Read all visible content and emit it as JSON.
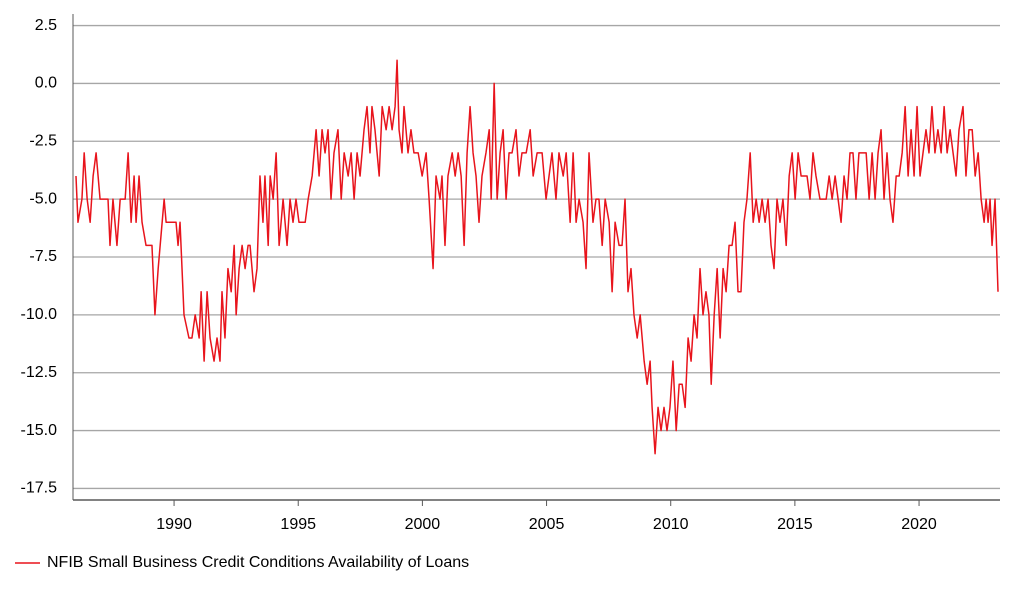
{
  "chart_data": {
    "type": "line",
    "x": [
      1986.05,
      1986.13,
      1986.29,
      1986.38,
      1986.5,
      1986.62,
      1986.74,
      1986.86,
      1987.02,
      1987.34,
      1987.42,
      1987.54,
      1987.7,
      1987.83,
      1988.03,
      1988.15,
      1988.27,
      1988.39,
      1988.47,
      1988.59,
      1988.71,
      1988.87,
      1989.11,
      1989.23,
      1989.36,
      1989.6,
      1989.68,
      1990.08,
      1990.16,
      1990.24,
      1990.4,
      1990.6,
      1990.72,
      1990.85,
      1991.01,
      1991.09,
      1991.21,
      1991.33,
      1991.45,
      1991.61,
      1991.73,
      1991.85,
      1991.93,
      1992.05,
      1992.17,
      1992.3,
      1992.42,
      1992.5,
      1992.62,
      1992.74,
      1992.86,
      1992.98,
      1993.06,
      1993.22,
      1993.34,
      1993.46,
      1993.58,
      1993.66,
      1993.79,
      1993.87,
      1993.99,
      1994.11,
      1994.23,
      1994.39,
      1994.55,
      1994.67,
      1994.79,
      1994.91,
      1995.03,
      1995.28,
      1995.4,
      1995.56,
      1995.72,
      1995.84,
      1995.96,
      1996.08,
      1996.2,
      1996.32,
      1996.44,
      1996.6,
      1996.73,
      1996.85,
      1997.01,
      1997.13,
      1997.25,
      1997.37,
      1997.49,
      1997.65,
      1997.77,
      1997.89,
      1997.97,
      1998.09,
      1998.26,
      1998.38,
      1998.54,
      1998.66,
      1998.78,
      1998.9,
      1998.98,
      1999.06,
      1999.18,
      1999.26,
      1999.42,
      1999.54,
      1999.66,
      1999.83,
      1999.99,
      2000.15,
      2000.27,
      2000.43,
      2000.55,
      2000.71,
      2000.79,
      2000.91,
      2001.03,
      2001.2,
      2001.32,
      2001.44,
      2001.56,
      2001.68,
      2001.8,
      2001.92,
      2002.04,
      2002.16,
      2002.28,
      2002.4,
      2002.56,
      2002.69,
      2002.77,
      2002.89,
      2003.01,
      2003.13,
      2003.25,
      2003.37,
      2003.49,
      2003.61,
      2003.77,
      2003.89,
      2004.01,
      2004.18,
      2004.34,
      2004.46,
      2004.62,
      2004.82,
      2004.98,
      2005.1,
      2005.22,
      2005.38,
      2005.5,
      2005.67,
      2005.79,
      2005.95,
      2006.07,
      2006.19,
      2006.31,
      2006.47,
      2006.59,
      2006.71,
      2006.87,
      2006.99,
      2007.11,
      2007.24,
      2007.36,
      2007.52,
      2007.64,
      2007.76,
      2007.92,
      2008.04,
      2008.16,
      2008.28,
      2008.4,
      2008.52,
      2008.65,
      2008.77,
      2008.93,
      2009.05,
      2009.17,
      2009.25,
      2009.37,
      2009.49,
      2009.61,
      2009.73,
      2009.85,
      2009.97,
      2010.09,
      2010.22,
      2010.34,
      2010.46,
      2010.58,
      2010.7,
      2010.82,
      2010.94,
      2011.06,
      2011.18,
      2011.3,
      2011.42,
      2011.54,
      2011.63,
      2011.75,
      2011.87,
      2011.99,
      2012.11,
      2012.23,
      2012.35,
      2012.47,
      2012.59,
      2012.71,
      2012.83,
      2012.95,
      2013.07,
      2013.2,
      2013.32,
      2013.44,
      2013.56,
      2013.68,
      2013.8,
      2013.92,
      2014.04,
      2014.16,
      2014.28,
      2014.4,
      2014.52,
      2014.65,
      2014.77,
      2014.89,
      2015.01,
      2015.13,
      2015.25,
      2015.37,
      2015.49,
      2015.61,
      2015.73,
      2015.85,
      2016.01,
      2016.26,
      2016.38,
      2016.5,
      2016.62,
      2016.74,
      2016.86,
      2016.98,
      2017.1,
      2017.22,
      2017.34,
      2017.46,
      2017.58,
      2017.71,
      2017.87,
      2017.99,
      2018.11,
      2018.23,
      2018.35,
      2018.47,
      2018.59,
      2018.71,
      2018.83,
      2018.95,
      2019.08,
      2019.2,
      2019.32,
      2019.44,
      2019.56,
      2019.68,
      2019.8,
      2019.92,
      2020.04,
      2020.16,
      2020.28,
      2020.4,
      2020.52,
      2020.64,
      2020.76,
      2020.89,
      2021.01,
      2021.13,
      2021.25,
      2021.37,
      2021.49,
      2021.61,
      2021.77,
      2021.89,
      2022.01,
      2022.14,
      2022.26,
      2022.38,
      2022.5,
      2022.62,
      2022.7,
      2022.78,
      2022.86,
      2022.94,
      2023.06,
      2023.18
    ],
    "series": [
      {
        "name": "NFIB Small Business Credit Conditions Availability of Loans",
        "color": "#e8141c",
        "values": [
          -4,
          -6,
          -5,
          -3,
          -5,
          -6,
          -4,
          -3,
          -5,
          -5,
          -7,
          -5,
          -7,
          -5,
          -5,
          -3,
          -6,
          -4,
          -6,
          -4,
          -6,
          -7,
          -7,
          -10,
          -8,
          -5,
          -6,
          -6,
          -7,
          -6,
          -10,
          -11,
          -11,
          -10,
          -11,
          -9,
          -12,
          -9,
          -11,
          -12,
          -11,
          -12,
          -9,
          -11,
          -8,
          -9,
          -7,
          -10,
          -8,
          -7,
          -8,
          -7,
          -7,
          -9,
          -8,
          -4,
          -6,
          -4,
          -7,
          -4,
          -5,
          -3,
          -7,
          -5,
          -7,
          -5,
          -6,
          -5,
          -6,
          -6,
          -5,
          -4,
          -2,
          -4,
          -2,
          -3,
          -2,
          -5,
          -3,
          -2,
          -5,
          -3,
          -4,
          -3,
          -5,
          -3,
          -4,
          -2,
          -1,
          -3,
          -1,
          -2,
          -4,
          -1,
          -2,
          -1,
          -2,
          -1,
          1,
          -2,
          -3,
          -1,
          -3,
          -2,
          -3,
          -3,
          -4,
          -3,
          -5,
          -8,
          -4,
          -5,
          -4,
          -7,
          -4,
          -3,
          -4,
          -3,
          -4,
          -7,
          -3,
          -1,
          -3,
          -4,
          -6,
          -4,
          -3,
          -2,
          -5,
          0,
          -5,
          -3,
          -2,
          -5,
          -3,
          -3,
          -2,
          -4,
          -3,
          -3,
          -2,
          -4,
          -3,
          -3,
          -5,
          -4,
          -3,
          -5,
          -3,
          -4,
          -3,
          -6,
          -3,
          -6,
          -5,
          -6,
          -8,
          -3,
          -6,
          -5,
          -5,
          -7,
          -5,
          -6,
          -9,
          -6,
          -7,
          -7,
          -5,
          -9,
          -8,
          -10,
          -11,
          -10,
          -12,
          -13,
          -12,
          -14,
          -16,
          -14,
          -15,
          -14,
          -15,
          -14,
          -12,
          -15,
          -13,
          -13,
          -14,
          -11,
          -12,
          -10,
          -11,
          -8,
          -10,
          -9,
          -10,
          -13,
          -10,
          -8,
          -11,
          -8,
          -9,
          -7,
          -7,
          -6,
          -9,
          -9,
          -6,
          -5,
          -3,
          -6,
          -5,
          -6,
          -5,
          -6,
          -5,
          -7,
          -8,
          -5,
          -6,
          -5,
          -7,
          -4,
          -3,
          -5,
          -3,
          -4,
          -4,
          -4,
          -5,
          -3,
          -4,
          -5,
          -5,
          -4,
          -5,
          -4,
          -5,
          -6,
          -4,
          -5,
          -3,
          -3,
          -5,
          -3,
          -3,
          -3,
          -5,
          -3,
          -5,
          -3,
          -2,
          -5,
          -3,
          -5,
          -6,
          -4,
          -4,
          -3,
          -1,
          -4,
          -2,
          -4,
          -1,
          -4,
          -3,
          -2,
          -3,
          -1,
          -3,
          -2,
          -3,
          -1,
          -3,
          -2,
          -3,
          -4,
          -2,
          -1,
          -4,
          -2,
          -2,
          -4,
          -3,
          -5,
          -6,
          -5,
          -6,
          -5,
          -7,
          -5,
          -9
        ]
      }
    ],
    "xlim": [
      1985.93,
      2023.26
    ],
    "xticks": [
      1990,
      1995,
      2000,
      2005,
      2010,
      2015,
      2020
    ],
    "ylim": [
      -18,
      3
    ],
    "yticks": [
      2.5,
      {
        "value": 0,
        "label": "0.0"
      },
      -2.5,
      {
        "value": -5,
        "label": "-5.0"
      },
      -7.5,
      {
        "value": -10,
        "label": "-10.0"
      },
      -12.5,
      {
        "value": -15,
        "label": "-15.0"
      },
      -17.5
    ],
    "grid": true,
    "legend": "bottom-left"
  }
}
